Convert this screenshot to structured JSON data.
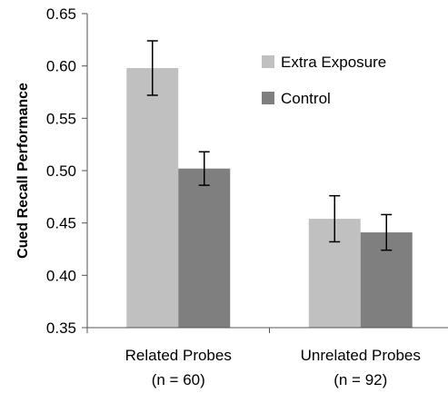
{
  "chart_data": {
    "type": "bar",
    "title": "",
    "xlabel": "",
    "ylabel": "Cued Recall Performance",
    "ylim": [
      0.35,
      0.65
    ],
    "yticks": [
      "0.35",
      "0.40",
      "0.45",
      "0.50",
      "0.55",
      "0.60",
      "0.65"
    ],
    "grid": false,
    "legend_position": "top-right",
    "categories": [
      {
        "label": "Related Probes",
        "sublabel": "(n = 60)"
      },
      {
        "label": "Unrelated Probes",
        "sublabel": "(n = 92)"
      }
    ],
    "series": [
      {
        "name": "Extra Exposure",
        "color": "#c0c0c0",
        "values": [
          0.598,
          0.454
        ],
        "errors": [
          0.026,
          0.022
        ]
      },
      {
        "name": "Control",
        "color": "#7f7f7f",
        "values": [
          0.502,
          0.441
        ],
        "errors": [
          0.016,
          0.017
        ]
      }
    ]
  }
}
